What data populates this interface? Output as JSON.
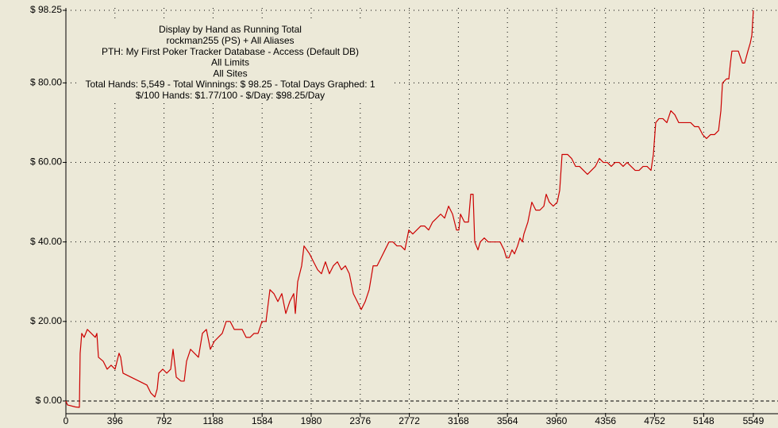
{
  "chart_data": {
    "type": "line",
    "annotations": [
      "Display by Hand as Running Total",
      "rockman255 (PS) + All Aliases",
      "PTH: My First Poker Tracker Database - Access (Default DB)",
      "All Limits",
      "All Sites",
      "Total Hands: 5,549 - Total Winnings: $ 98.25 - Total Days Graphed: 1",
      "$/100 Hands: $1.77/100 - $/Day: $98.25/Day"
    ],
    "xlim": [
      0,
      5748
    ],
    "ylim": [
      -3.2,
      98.85
    ],
    "xticks": [
      0,
      396,
      792,
      1188,
      1584,
      1980,
      2376,
      2772,
      3168,
      3564,
      3960,
      4356,
      4752,
      5148,
      5549
    ],
    "yticks": [
      {
        "value": 0,
        "label": "$ 0.00"
      },
      {
        "value": 20,
        "label": "$ 20.00"
      },
      {
        "value": 40,
        "label": "$ 40.00"
      },
      {
        "value": 60,
        "label": "$ 60.00"
      },
      {
        "value": 80,
        "label": "$ 80.00"
      },
      {
        "value": 98.25,
        "label": "$ 98.25"
      }
    ],
    "grid": true,
    "x": [
      0,
      13,
      77,
      109,
      115,
      128,
      147,
      173,
      205,
      237,
      250,
      263,
      301,
      333,
      365,
      397,
      429,
      442,
      461,
      525,
      590,
      654,
      686,
      718,
      737,
      750,
      782,
      814,
      846,
      865,
      891,
      929,
      955,
      974,
      1006,
      1038,
      1070,
      1102,
      1134,
      1166,
      1198,
      1230,
      1262,
      1294,
      1326,
      1359,
      1391,
      1423,
      1455,
      1487,
      1519,
      1551,
      1583,
      1615,
      1647,
      1679,
      1711,
      1743,
      1775,
      1807,
      1839,
      1852,
      1871,
      1903,
      1922,
      1967,
      1999,
      2032,
      2063,
      2095,
      2127,
      2159,
      2192,
      2224,
      2256,
      2288,
      2320,
      2352,
      2384,
      2416,
      2448,
      2480,
      2512,
      2544,
      2576,
      2608,
      2640,
      2672,
      2704,
      2736,
      2768,
      2800,
      2832,
      2864,
      2896,
      2928,
      2960,
      2993,
      3025,
      3057,
      3089,
      3121,
      3153,
      3172,
      3185,
      3217,
      3249,
      3268,
      3287,
      3300,
      3326,
      3345,
      3377,
      3409,
      3441,
      3473,
      3505,
      3537,
      3556,
      3576,
      3601,
      3621,
      3646,
      3665,
      3685,
      3697,
      3729,
      3761,
      3793,
      3826,
      3858,
      3877,
      3902,
      3934,
      3966,
      3986,
      4005,
      4050,
      4082,
      4114,
      4146,
      4178,
      4210,
      4242,
      4274,
      4306,
      4338,
      4370,
      4402,
      4434,
      4466,
      4498,
      4530,
      4562,
      4595,
      4627,
      4659,
      4691,
      4723,
      4742,
      4761,
      4787,
      4819,
      4851,
      4883,
      4915,
      4947,
      4979,
      5011,
      5043,
      5075,
      5107,
      5140,
      5171,
      5204,
      5236,
      5268,
      5287,
      5300,
      5332,
      5351,
      5364,
      5376,
      5396,
      5428,
      5460,
      5479,
      5505,
      5524,
      5537,
      5549
    ],
    "series": [
      {
        "color": "#cc0000",
        "values": [
          0,
          -1,
          -1.5,
          -1.6,
          12,
          17,
          16,
          18,
          17,
          16,
          17,
          11,
          10,
          8,
          9,
          8,
          12,
          11,
          7,
          6,
          5,
          4,
          2,
          1,
          3,
          7,
          8,
          7,
          8,
          13,
          6,
          5,
          5,
          10,
          13,
          12,
          11,
          17,
          18,
          13,
          15,
          16,
          17,
          20,
          20,
          18,
          18,
          18,
          16,
          16,
          17,
          17,
          20,
          20,
          28,
          27,
          25,
          27,
          22,
          25,
          27,
          22,
          30,
          34,
          39,
          37,
          35,
          33,
          32,
          35,
          32,
          34,
          35,
          33,
          34,
          32,
          27,
          25,
          23,
          25,
          28,
          34,
          34,
          36,
          38,
          40,
          40,
          39,
          39,
          38,
          43,
          42,
          43,
          44,
          44,
          43,
          45,
          46,
          47,
          46,
          49,
          47,
          43,
          43,
          47,
          45,
          45,
          52,
          52,
          40,
          38,
          40,
          41,
          40,
          40,
          40,
          40,
          38,
          36,
          36,
          38,
          37,
          39,
          41,
          40,
          42,
          45,
          50,
          48,
          48,
          49,
          52,
          50,
          49,
          50,
          53,
          62,
          62,
          61,
          59,
          59,
          58,
          57,
          58,
          59,
          61,
          60,
          60,
          59,
          60,
          60,
          59,
          60,
          59,
          58,
          58,
          59,
          59,
          58,
          62,
          70,
          71,
          71,
          70,
          73,
          72,
          70,
          70,
          70,
          70,
          69,
          69,
          67,
          66,
          67,
          67,
          68,
          73,
          80,
          81,
          81,
          85,
          88,
          88,
          88,
          85,
          85,
          88,
          90,
          92,
          98.25
        ]
      }
    ]
  }
}
